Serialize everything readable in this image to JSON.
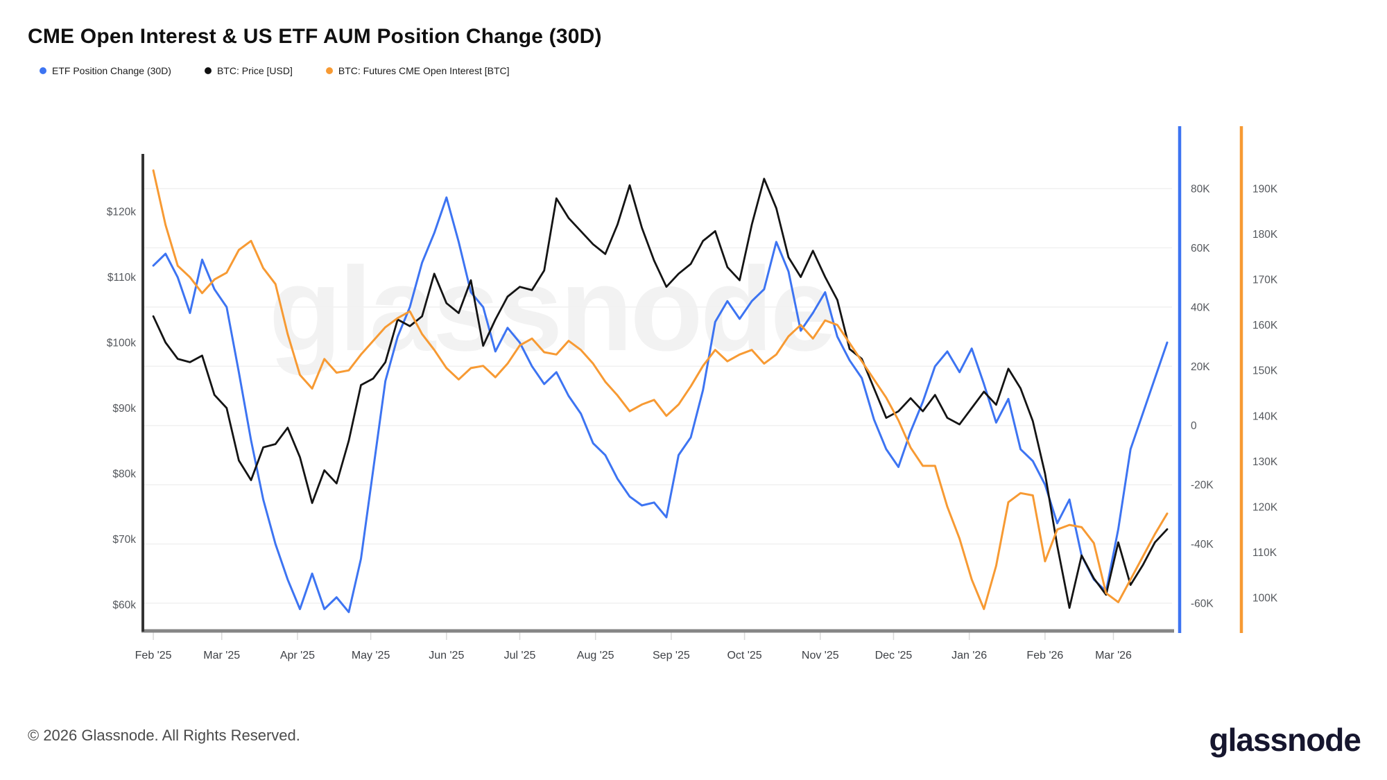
{
  "title": "CME Open Interest & US ETF AUM Position Change (30D)",
  "legend": [
    {
      "label": "ETF Position Change (30D)",
      "color": "#3D74F2"
    },
    {
      "label": "BTC: Price [USD]",
      "color": "#111111"
    },
    {
      "label": "BTC: Futures CME Open Interest [BTC]",
      "color": "#F79A33"
    }
  ],
  "watermark": "glassnode",
  "footer": {
    "copyright": "© 2026 Glassnode. All Rights Reserved.",
    "logo": "glassnode"
  },
  "chart_data": {
    "type": "line",
    "title": "CME Open Interest & US ETF AUM Position Change (30D)",
    "x_start": "2025-01-28",
    "x_end": "2026-03-22",
    "sampling_days": 5,
    "grid": "horizontal",
    "x_ticks": [
      {
        "label": "Feb '25",
        "day": 4
      },
      {
        "label": "Mar '25",
        "day": 32
      },
      {
        "label": "Apr '25",
        "day": 63
      },
      {
        "label": "May '25",
        "day": 93
      },
      {
        "label": "Jun '25",
        "day": 124
      },
      {
        "label": "Jul '25",
        "day": 154
      },
      {
        "label": "Aug '25",
        "day": 185
      },
      {
        "label": "Sep '25",
        "day": 216
      },
      {
        "label": "Oct '25",
        "day": 246
      },
      {
        "label": "Nov '25",
        "day": 277
      },
      {
        "label": "Dec '25",
        "day": 307
      },
      {
        "label": "Jan '26",
        "day": 338
      },
      {
        "label": "Feb '26",
        "day": 369
      },
      {
        "label": "Mar '26",
        "day": 397
      }
    ],
    "axes": {
      "left": {
        "title": "BTC Price [USD]",
        "tick_labels": [
          "$120k",
          "$110k",
          "$100k",
          "$90k",
          "$80k",
          "$70k",
          "$60k"
        ],
        "tick_values": [
          120,
          110,
          100,
          90,
          80,
          70,
          60
        ],
        "unit": "USD thousands"
      },
      "right1": {
        "title": "ETF Position Change (30D)",
        "tick_labels": [
          "80K",
          "60K",
          "40K",
          "20K",
          "0",
          "-20K",
          "-40K",
          "-60K"
        ],
        "tick_values": [
          80,
          60,
          40,
          20,
          0,
          -20,
          -40,
          -60
        ],
        "unit": "BTC thousands",
        "color": "#3D74F2"
      },
      "right2": {
        "title": "CME Open Interest",
        "tick_labels": [
          "190K",
          "180K",
          "170K",
          "160K",
          "150K",
          "140K",
          "130K",
          "120K",
          "110K",
          "100K"
        ],
        "tick_values": [
          190,
          180,
          170,
          160,
          150,
          140,
          130,
          120,
          110,
          100
        ],
        "unit": "BTC thousands",
        "color": "#F79A33"
      }
    },
    "series": [
      {
        "name": "ETF Position Change (30D)",
        "axis": "right1",
        "color": "#3D74F2",
        "width": 3,
        "values": [
          54,
          58,
          50,
          38,
          56,
          46,
          40,
          18,
          -5,
          -25,
          -40,
          -52,
          -62,
          -50,
          -62,
          -58,
          -63,
          -45,
          -15,
          15,
          30,
          40,
          55,
          65,
          77,
          62,
          45,
          40,
          25,
          33,
          28,
          20,
          14,
          18,
          10,
          4,
          -6,
          -10,
          -18,
          -24,
          -27,
          -26,
          -31,
          -10,
          -4,
          12,
          35,
          42,
          36,
          42,
          46,
          62,
          52,
          32,
          38,
          45,
          30,
          22,
          16,
          2,
          -8,
          -14,
          -2,
          8,
          20,
          25,
          18,
          26,
          14,
          1,
          9,
          -8,
          -12,
          -20,
          -33,
          -25,
          -44,
          -52,
          -56,
          -35,
          -8,
          4,
          16,
          28
        ]
      },
      {
        "name": "BTC: Price [USD]",
        "axis": "left",
        "color": "#141414",
        "width": 2.8,
        "values": [
          104,
          100,
          97.5,
          97,
          98,
          92,
          90,
          82,
          79,
          84,
          84.5,
          87,
          82.5,
          75.5,
          80.5,
          78.5,
          85,
          93.5,
          94.5,
          97,
          103.5,
          102.5,
          104,
          110.5,
          106,
          104.5,
          109.5,
          99.5,
          103.5,
          107,
          108.5,
          108,
          111,
          122,
          119,
          117,
          115,
          113.5,
          118,
          124,
          117.5,
          112.5,
          108.5,
          110.5,
          112,
          115.5,
          117,
          111.5,
          109.5,
          118,
          125,
          120.5,
          113,
          110,
          114,
          110,
          106.5,
          99,
          97.5,
          93,
          88.5,
          89.5,
          91.5,
          89.5,
          92,
          88.5,
          87.5,
          90,
          92.5,
          90.5,
          96,
          93,
          88,
          80,
          69,
          59.5,
          67.5,
          64,
          61.5,
          69.5,
          63,
          66,
          69.5,
          71.5
        ]
      },
      {
        "name": "BTC: Futures CME Open Interest [BTC]",
        "axis": "right2",
        "color": "#F79A33",
        "width": 3,
        "values": [
          194,
          182,
          173,
          170.5,
          167,
          170,
          171.5,
          176.5,
          178.5,
          172.5,
          169,
          158,
          149,
          146,
          152.5,
          149.5,
          150,
          153.5,
          156.5,
          159.5,
          161.5,
          163,
          158,
          154.5,
          150.5,
          148,
          150.5,
          151,
          148.5,
          151.5,
          155.5,
          157,
          154,
          153.5,
          156.5,
          154.5,
          151.5,
          147.5,
          144.5,
          141,
          142.5,
          143.5,
          140,
          142.5,
          146.5,
          151,
          154.5,
          152,
          153.5,
          154.5,
          151.5,
          153.5,
          157.5,
          160,
          157,
          161,
          160,
          156,
          152,
          148,
          144,
          139,
          133,
          129,
          129,
          120,
          113,
          104,
          97.5,
          107,
          121,
          123,
          122.5,
          108,
          115,
          116,
          115.5,
          112,
          101,
          99,
          104,
          109,
          114,
          118.5
        ]
      }
    ]
  }
}
